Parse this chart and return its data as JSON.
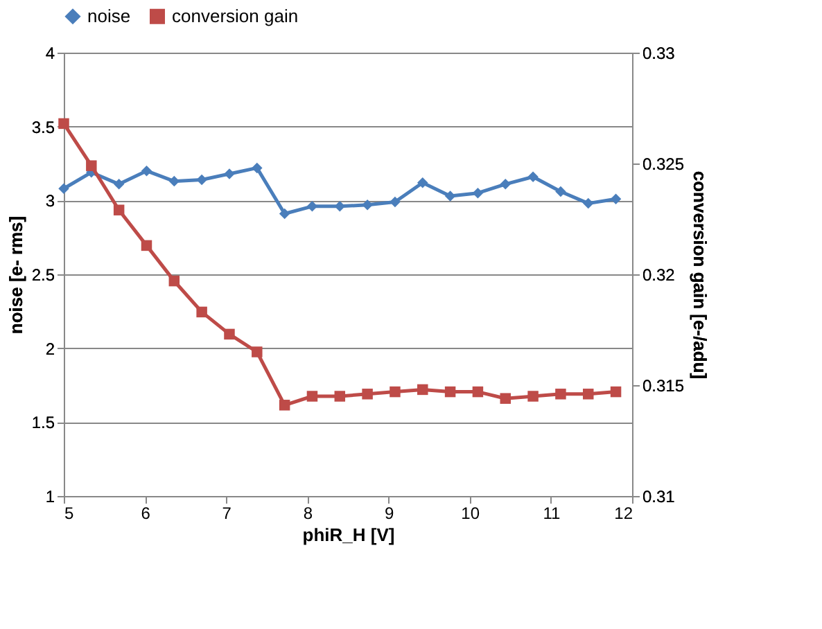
{
  "chart_data": {
    "type": "line",
    "xlabel": "phiR_H [V]",
    "ylabel": "noise [e- rms]",
    "y2label": "conversion gain [e-/adu]",
    "x": [
      5,
      5.34,
      5.68,
      6.02,
      6.36,
      6.7,
      7.04,
      7.38,
      7.72,
      8.06,
      8.4,
      8.74,
      9.08,
      9.42,
      9.76,
      10.1,
      10.44,
      10.78,
      11.12,
      11.46,
      11.8
    ],
    "series": [
      {
        "name": "noise",
        "color": "#4a7ebb",
        "marker": "diamond",
        "values": [
          3.08,
          3.19,
          3.11,
          3.2,
          3.13,
          3.14,
          3.18,
          3.22,
          2.91,
          2.96,
          2.96,
          2.97,
          2.99,
          3.12,
          3.03,
          3.05,
          3.11,
          3.16,
          3.06,
          2.98,
          3.01
        ]
      },
      {
        "name": "conversion gain",
        "color": "#be4b48",
        "marker": "square",
        "axis": "y2",
        "values": [
          0.3268,
          0.3249,
          0.3229,
          0.3213,
          0.3197,
          0.3183,
          0.3173,
          0.3165,
          0.3141,
          0.3145,
          0.3145,
          0.3146,
          0.3147,
          0.3148,
          0.3147,
          0.3147,
          0.3144,
          0.3145,
          0.3146,
          0.3146,
          0.3147
        ]
      }
    ],
    "xlim": [
      5,
      12
    ],
    "xticks": [
      5,
      6,
      7,
      8,
      9,
      10,
      11,
      12
    ],
    "ylim": [
      1,
      4
    ],
    "yticks": [
      1,
      1.5,
      2,
      2.5,
      3,
      3.5,
      4
    ],
    "y2lim": [
      0.31,
      0.33
    ],
    "y2ticks": [
      0.31,
      0.315,
      0.32,
      0.325,
      0.33
    ],
    "grid": "y",
    "legend": "top",
    "line_style": "solid"
  }
}
